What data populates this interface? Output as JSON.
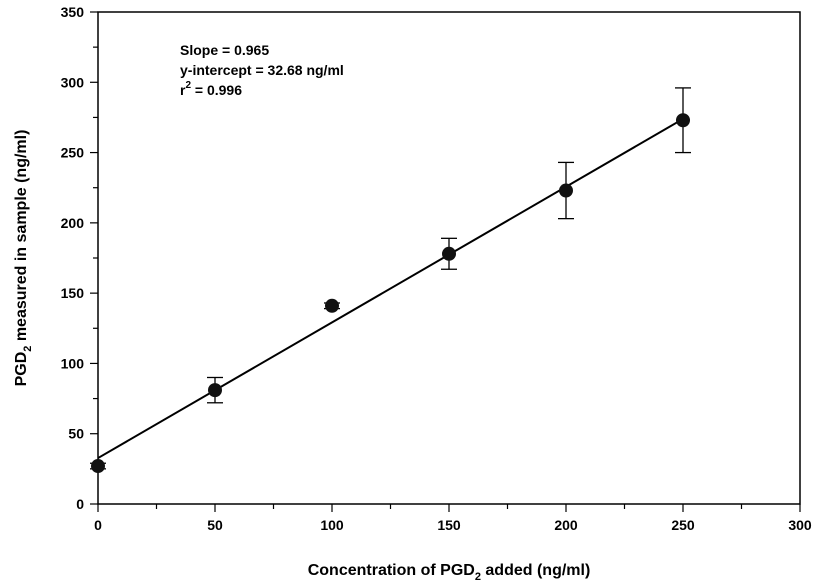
{
  "chart_data": {
    "type": "scatter",
    "title": "",
    "xlabel": {
      "pre": "Concentration of PGD",
      "sub": "2",
      "post": " added (ng/ml)"
    },
    "ylabel": {
      "pre": "PGD",
      "sub": "2",
      "post": " measured in sample (ng/ml)"
    },
    "xlim": [
      0,
      300
    ],
    "ylim": [
      0,
      350
    ],
    "x_ticks": [
      0,
      50,
      100,
      150,
      200,
      250,
      300
    ],
    "y_ticks": [
      0,
      50,
      100,
      150,
      200,
      250,
      300,
      350
    ],
    "grid": false,
    "points": [
      {
        "x": 0,
        "y": 27,
        "err": 2
      },
      {
        "x": 50,
        "y": 81,
        "err": 9
      },
      {
        "x": 100,
        "y": 141,
        "err": 2
      },
      {
        "x": 150,
        "y": 178,
        "err": 11
      },
      {
        "x": 200,
        "y": 223,
        "err": 20
      },
      {
        "x": 250,
        "y": 273,
        "err": 23
      }
    ],
    "fit_line": {
      "slope": 0.965,
      "intercept": 32.68,
      "x_range": [
        0,
        250
      ]
    },
    "annotations": {
      "slope": "Slope = 0.965",
      "intercept": "y-intercept = 32.68 ng/ml",
      "r2_pre": "r",
      "r2_sup": "2",
      "r2_post": " = 0.996"
    }
  }
}
